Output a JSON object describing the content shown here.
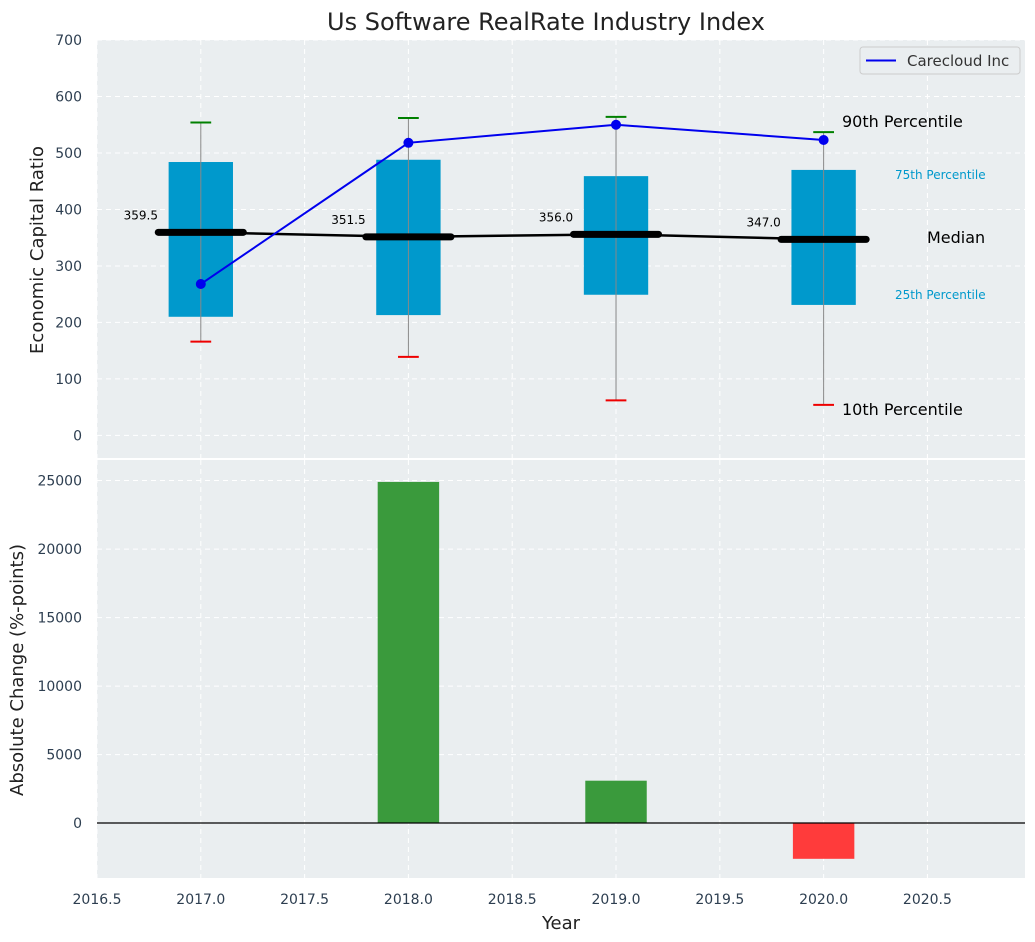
{
  "chart_data": [
    {
      "type": "box",
      "title": "Us Software RealRate Industry Index",
      "xlabel": "",
      "ylabel": "Economic Capital Ratio",
      "ylim": [
        -40,
        700
      ],
      "xlim": [
        2016.5,
        2020.97
      ],
      "yticks": [
        "0",
        "100",
        "200",
        "300",
        "400",
        "500",
        "600",
        "700"
      ],
      "grid": true,
      "legend_position": "top-right",
      "colors": {
        "box": "#0099cc",
        "median": "#000000",
        "company": "#0000ee",
        "p90_cap": "#008000",
        "p10_cap": "#ee0000",
        "background": "#eaeef0"
      },
      "boxes": [
        {
          "x": 2017,
          "p10": 166,
          "p25": 210,
          "median": 359.5,
          "p75": 484,
          "p90": 554
        },
        {
          "x": 2018,
          "p10": 139,
          "p25": 213,
          "median": 351.5,
          "p75": 488,
          "p90": 562
        },
        {
          "x": 2019,
          "p10": 62,
          "p25": 249,
          "median": 356.0,
          "p75": 459,
          "p90": 564
        },
        {
          "x": 2020,
          "p10": 54,
          "p25": 231,
          "median": 347.0,
          "p75": 470,
          "p90": 537
        }
      ],
      "median_labels": [
        "359.5",
        "351.5",
        "356.0",
        "347.0"
      ],
      "series": [
        {
          "name": "Carecloud Inc",
          "x": [
            2017,
            2018,
            2019,
            2020
          ],
          "values": [
            268,
            518,
            550,
            523
          ]
        }
      ],
      "annotations": {
        "p90": "90th Percentile",
        "p75": "75th Percentile",
        "median": "Median",
        "p25": "25th Percentile",
        "p10": "10th Percentile"
      }
    },
    {
      "type": "bar",
      "xlabel": "Year",
      "ylabel": "Absolute Change (%-points)",
      "ylim": [
        -4000,
        26500
      ],
      "xlim": [
        2016.5,
        2020.97
      ],
      "x": [
        2018,
        2019,
        2020
      ],
      "values": [
        24900,
        3100,
        -2600
      ],
      "colors": {
        "positive": "#3a9a3c",
        "negative": "#ff3b3b"
      },
      "xticks": [
        "2016.5",
        "2017.0",
        "2017.5",
        "2018.0",
        "2018.5",
        "2019.0",
        "2019.5",
        "2020.0",
        "2020.5"
      ],
      "yticks": [
        "0",
        "5000",
        "10000",
        "15000",
        "20000",
        "25000"
      ],
      "grid": true
    }
  ]
}
